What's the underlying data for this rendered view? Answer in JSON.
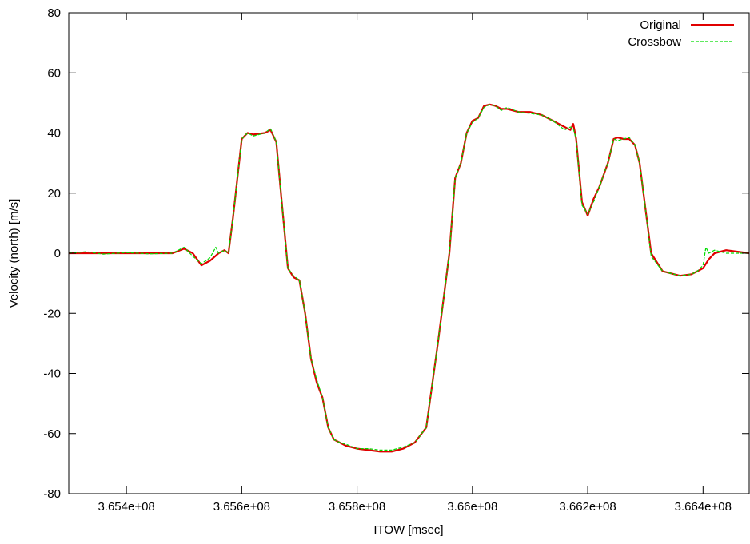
{
  "chart_data": {
    "type": "line",
    "title": "",
    "xlabel": "ITOW [msec]",
    "ylabel": "Velocity (north) [m/s]",
    "xlim": [
      365300000,
      366480000
    ],
    "ylim": [
      -80,
      80
    ],
    "x_ticks": [
      365400000,
      365600000,
      365800000,
      366000000,
      366200000,
      366400000
    ],
    "x_tick_labels": [
      "3.654e+08",
      "3.656e+08",
      "3.658e+08",
      "3.66e+08",
      "3.662e+08",
      "3.664e+08"
    ],
    "y_ticks": [
      -80,
      -60,
      -40,
      -20,
      0,
      20,
      40,
      60,
      80
    ],
    "y_tick_labels": [
      "-80",
      "-60",
      "-40",
      "-20",
      "0",
      "20",
      "40",
      "60",
      "80"
    ],
    "grid": false,
    "legend_position": "top-right",
    "series": [
      {
        "name": "Original",
        "color": "#e00000",
        "dash": "solid",
        "x": [
          365300000,
          365400000,
          365480000,
          365500000,
          365515000,
          365530000,
          365545000,
          365560000,
          365570000,
          365577000,
          365585000,
          365600000,
          365610000,
          365620000,
          365640000,
          365650000,
          365660000,
          365668000,
          365680000,
          365690000,
          365700000,
          365710000,
          365720000,
          365730000,
          365740000,
          365750000,
          365760000,
          365770000,
          365780000,
          365800000,
          365820000,
          365840000,
          365860000,
          365880000,
          365900000,
          365920000,
          365940000,
          365960000,
          365970000,
          365980000,
          365990000,
          366000000,
          366010000,
          366020000,
          366030000,
          366040000,
          366050000,
          366060000,
          366080000,
          366100000,
          366120000,
          366140000,
          366160000,
          366170000,
          366175000,
          366180000,
          366190000,
          366200000,
          366210000,
          366220000,
          366235000,
          366245000,
          366252000,
          366262000,
          366272000,
          366282000,
          366290000,
          366300000,
          366310000,
          366330000,
          366360000,
          366380000,
          366390000,
          366400000,
          366410000,
          366420000,
          366440000,
          366480000
        ],
        "y": [
          0,
          0,
          0,
          1.5,
          0,
          -4,
          -2.5,
          0,
          1,
          0,
          12,
          38,
          40,
          39.5,
          40,
          41,
          37,
          20,
          -5,
          -8,
          -9,
          -20,
          -35,
          -43,
          -48,
          -58,
          -62,
          -63,
          -64,
          -65,
          -65.5,
          -66,
          -66,
          -65,
          -63,
          -58,
          -30,
          0,
          25,
          30,
          40,
          44,
          45,
          49,
          49.5,
          49,
          48,
          48,
          47,
          47,
          46,
          44,
          42,
          41,
          43,
          38,
          17,
          12.5,
          18,
          22,
          30,
          38,
          38.5,
          38,
          38,
          36,
          30,
          15,
          0,
          -6,
          -7.5,
          -7,
          -6,
          -5,
          -2,
          0,
          1,
          0
        ]
      },
      {
        "name": "Crossbow",
        "color": "#00dd00",
        "dash": "dashed",
        "x": [
          365300000,
          365330000,
          365360000,
          365400000,
          365440000,
          365480000,
          365500000,
          365515000,
          365530000,
          365545000,
          365555000,
          365560000,
          365570000,
          365577000,
          365585000,
          365600000,
          365610000,
          365620000,
          365640000,
          365650000,
          365660000,
          365668000,
          365680000,
          365690000,
          365700000,
          365710000,
          365720000,
          365730000,
          365740000,
          365750000,
          365760000,
          365770000,
          365780000,
          365800000,
          365820000,
          365840000,
          365860000,
          365880000,
          365900000,
          365920000,
          365940000,
          365960000,
          365970000,
          365980000,
          365990000,
          366000000,
          366010000,
          366020000,
          366030000,
          366040000,
          366050000,
          366060000,
          366080000,
          366100000,
          366120000,
          366140000,
          366160000,
          366170000,
          366175000,
          366180000,
          366190000,
          366200000,
          366210000,
          366220000,
          366235000,
          366245000,
          366252000,
          366262000,
          366272000,
          366282000,
          366290000,
          366300000,
          366310000,
          366330000,
          366360000,
          366380000,
          366390000,
          366400000,
          366405000,
          366410000,
          366420000,
          366440000,
          366480000
        ],
        "y": [
          0,
          0.5,
          -0.3,
          0.2,
          -0.2,
          0,
          2,
          -1,
          -3.5,
          -1.5,
          2,
          0,
          1,
          0,
          12,
          38,
          40,
          39,
          40,
          41.5,
          37,
          20,
          -5,
          -7.5,
          -9,
          -20,
          -35,
          -42,
          -48,
          -58,
          -62,
          -63,
          -63.5,
          -65,
          -65,
          -65.5,
          -65.5,
          -64.5,
          -63,
          -58,
          -30,
          0,
          25,
          30,
          40,
          43.5,
          45,
          48.5,
          49.5,
          49,
          47.5,
          48.5,
          47,
          46.5,
          46,
          44,
          41,
          42,
          41.5,
          38,
          16,
          13,
          17,
          22,
          30,
          38,
          37.5,
          38,
          38.5,
          36,
          30,
          15,
          -1,
          -6,
          -7.5,
          -7,
          -6,
          -4,
          2,
          0,
          1,
          0,
          0
        ]
      }
    ]
  }
}
